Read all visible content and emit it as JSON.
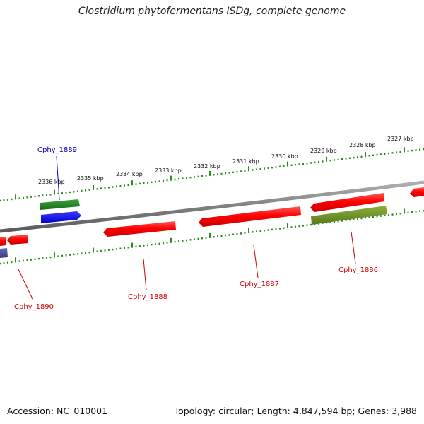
{
  "title": "Clostridium phytofermentans ISDg, complete genome",
  "footer": {
    "accession": "Accession: NC_010001",
    "summary": "Topology: circular; Length: 4,847,594 bp; Genes: 3,988"
  },
  "colors": {
    "backbone": "#808080",
    "ticks": "#2a8a1a",
    "forward_cds": "#ff0000",
    "label_red": "#cc0000",
    "label_blue": "#0000aa",
    "green_feature": "#228b22",
    "blue_feature": "#0000ff",
    "olive_feature": "#6b8e23",
    "purple_feature": "#4b4b8f"
  },
  "ticks": [
    {
      "label": "2336 kbp"
    },
    {
      "label": "2335 kbp"
    },
    {
      "label": "2334 kbp"
    },
    {
      "label": "2333 kbp"
    },
    {
      "label": "2332 kbp"
    },
    {
      "label": "2331 kbp"
    },
    {
      "label": "2330 kbp"
    },
    {
      "label": "2329 kbp"
    },
    {
      "label": "2328 kbp"
    },
    {
      "label": "2327 kbp"
    }
  ],
  "genes": [
    {
      "name": "Cphy_1889",
      "color": "blue"
    },
    {
      "name": "Cphy_1890",
      "color": "red"
    },
    {
      "name": "Cphy_1888",
      "color": "red"
    },
    {
      "name": "Cphy_1887",
      "color": "red"
    },
    {
      "name": "Cphy_1886",
      "color": "red"
    }
  ]
}
